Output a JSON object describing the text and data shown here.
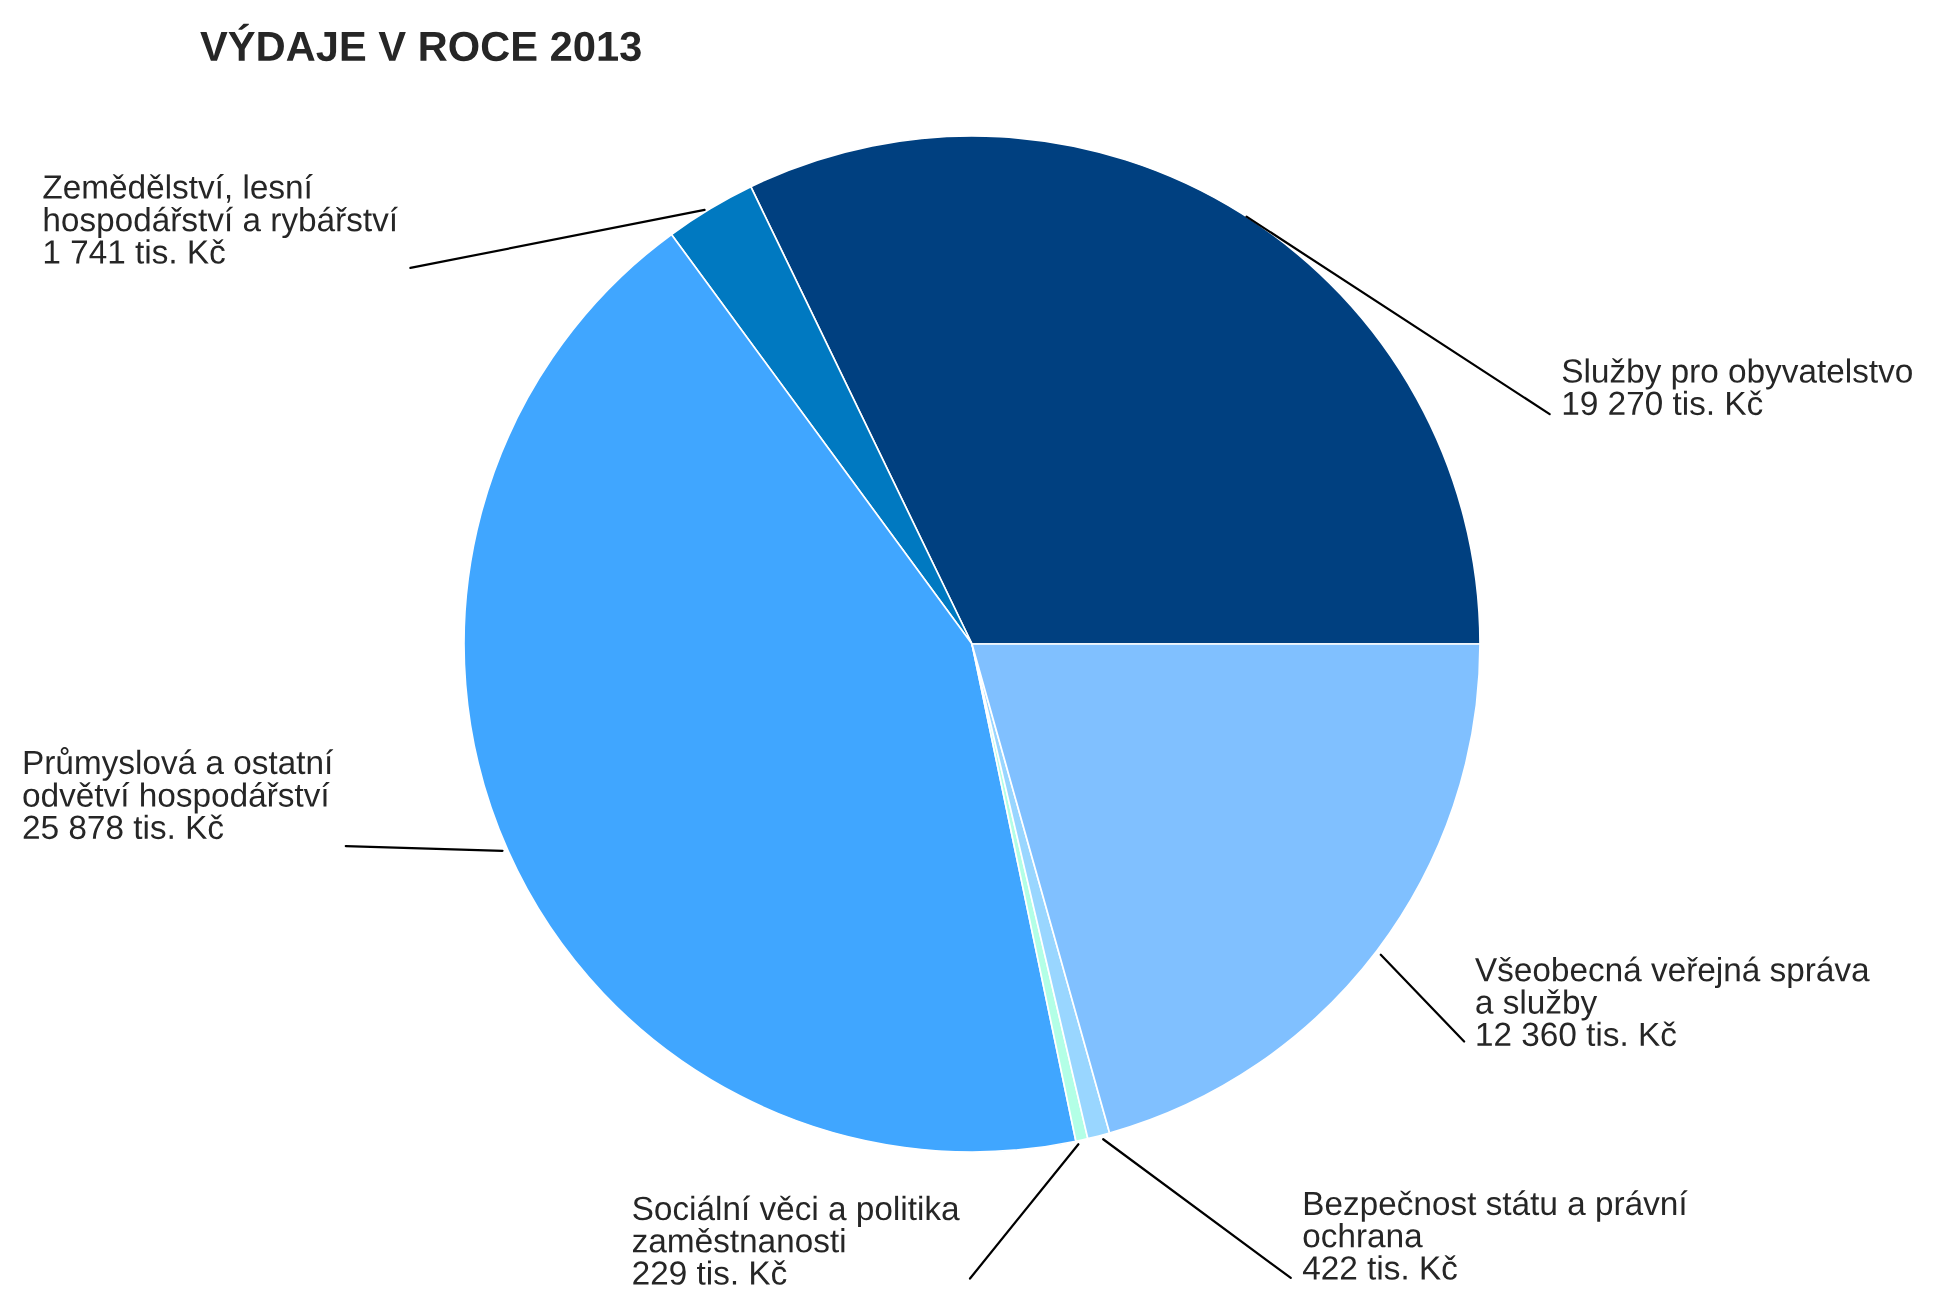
{
  "chart_data": {
    "type": "pie",
    "title": "VÝDAJE V ROCE 2013",
    "categories": [
      "Služby pro obyvatelstvo",
      "Zemědělství, lesní\nhospodářství a rybářství",
      "Průmyslová a ostatní\nodvětví hospodářství",
      "Sociální věci a politika\nzaměstnanosti",
      "Bezpečnost státu a právní\nochrana",
      "Všeobecná veřejná správa\na služby"
    ],
    "values": [
      19270,
      1741,
      25878,
      229,
      422,
      12360
    ],
    "value_labels": [
      "19 270 tis. Kč",
      "1 741 tis. Kč",
      "25 878 tis. Kč",
      "229 tis. Kč",
      "422 tis. Kč",
      "12 360 tis. Kč"
    ],
    "colors": [
      "#004080",
      "#0079c1",
      "#40a6ff",
      "#b3ffe6",
      "#99d6ff",
      "#80c0ff"
    ]
  }
}
